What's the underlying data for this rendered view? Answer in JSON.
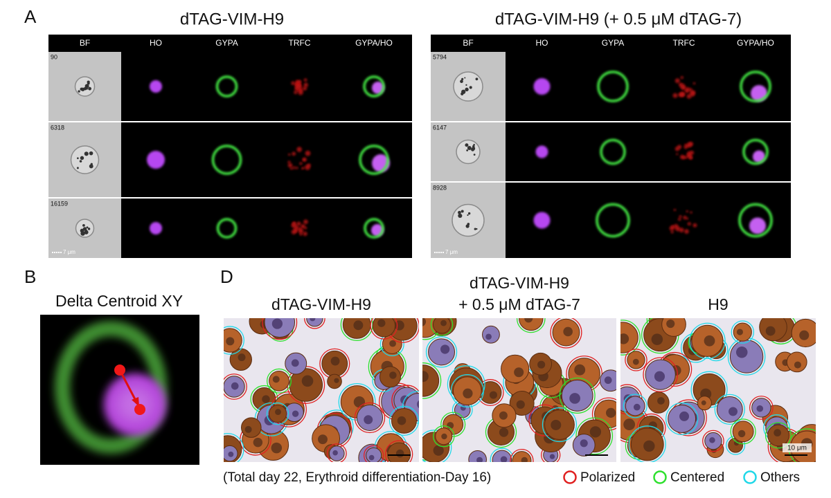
{
  "panel_a": {
    "label": "A",
    "groups": [
      {
        "title": "dTAG-VIM-H9",
        "channels": [
          "BF",
          "HO",
          "GYPA",
          "TRFC",
          "GYPA/HO"
        ],
        "cell_ids": [
          "90",
          "6318",
          "16159"
        ],
        "scale_bar": "7 μm"
      },
      {
        "title": "dTAG-VIM-H9 (+ 0.5 μM dTAG-7)",
        "channels": [
          "BF",
          "HO",
          "GYPA",
          "TRFC",
          "GYPA/HO"
        ],
        "cell_ids": [
          "5794",
          "6147",
          "8928"
        ],
        "scale_bar": "7 μm"
      }
    ]
  },
  "panel_b": {
    "label": "B",
    "title": "Delta Centroid XY"
  },
  "panel_d": {
    "label": "D",
    "images": [
      {
        "title_lines": [
          "dTAG-VIM-H9"
        ]
      },
      {
        "title_lines": [
          "dTAG-VIM-H9",
          "+ 0.5 μM dTAG-7"
        ]
      },
      {
        "title_lines": [
          "H9"
        ],
        "scale_bar": "10 μm"
      }
    ],
    "caption": "(Total day 22, Erythroid differentiation-Day 16)",
    "legend": [
      {
        "label": "Polarized",
        "color": "#e02020"
      },
      {
        "label": "Centered",
        "color": "#2ee02e"
      },
      {
        "label": "Others",
        "color": "#20d8e8"
      }
    ]
  }
}
